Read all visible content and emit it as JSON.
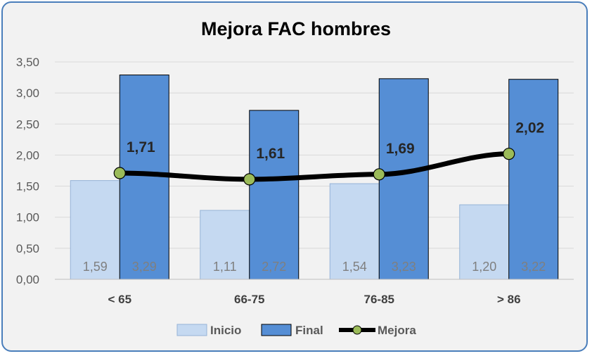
{
  "chart_data": {
    "type": "bar",
    "title": "Mejora FAC hombres",
    "categories": [
      "< 65",
      "66-75",
      "76-85",
      "> 86"
    ],
    "ylim": [
      0,
      3.5
    ],
    "yticks": [
      "0,00",
      "0,50",
      "1,00",
      "1,50",
      "2,00",
      "2,50",
      "3,00",
      "3,50"
    ],
    "grid": true,
    "legend_position": "bottom",
    "series": [
      {
        "name": "Inicio",
        "type": "bar",
        "values": [
          1.59,
          1.11,
          1.54,
          1.2
        ],
        "labels": [
          "1,59",
          "1,11",
          "1,54",
          "1,20"
        ],
        "color": "#c5d9f1"
      },
      {
        "name": "Final",
        "type": "bar",
        "values": [
          3.29,
          2.72,
          3.23,
          3.22
        ],
        "labels": [
          "3,29",
          "2,72",
          "3,23",
          "3,22"
        ],
        "color": "#558ed5"
      },
      {
        "name": "Mejora",
        "type": "line",
        "values": [
          1.71,
          1.61,
          1.69,
          2.02
        ],
        "labels": [
          "1,71",
          "1,61",
          "1,69",
          "2,02"
        ],
        "color": "#000000",
        "marker_color": "#9bbb59"
      }
    ]
  }
}
